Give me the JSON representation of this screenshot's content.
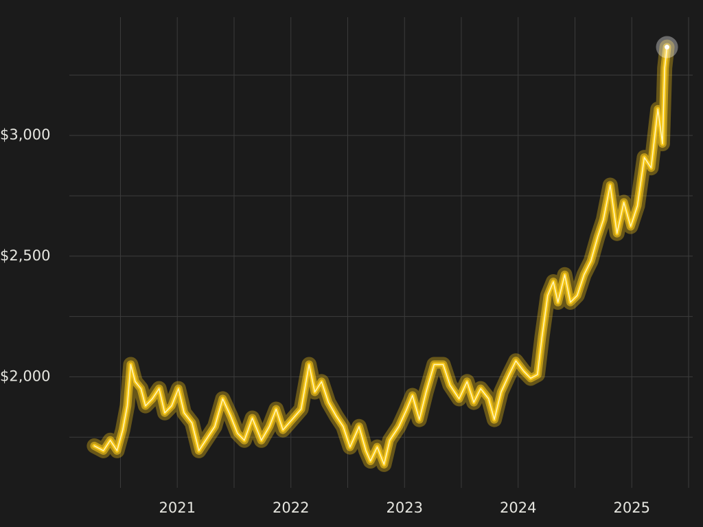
{
  "chart_data": {
    "type": "line",
    "x": [
      2020.27,
      2020.35,
      2020.41,
      2020.47,
      2020.52,
      2020.56,
      2020.59,
      2020.63,
      2020.68,
      2020.72,
      2020.78,
      2020.84,
      2020.89,
      2020.95,
      2021.01,
      2021.06,
      2021.13,
      2021.19,
      2021.25,
      2021.33,
      2021.4,
      2021.47,
      2021.53,
      2021.59,
      2021.66,
      2021.74,
      2021.81,
      2021.87,
      2021.93,
      2022.01,
      2022.09,
      2022.16,
      2022.21,
      2022.27,
      2022.33,
      2022.4,
      2022.46,
      2022.52,
      2022.6,
      2022.66,
      2022.7,
      2022.76,
      2022.82,
      2022.87,
      2022.95,
      2023.02,
      2023.07,
      2023.13,
      2023.19,
      2023.26,
      2023.34,
      2023.4,
      2023.48,
      2023.55,
      2023.61,
      2023.67,
      2023.74,
      2023.79,
      2023.85,
      2023.92,
      2023.98,
      2024.05,
      2024.11,
      2024.17,
      2024.21,
      2024.26,
      2024.31,
      2024.35,
      2024.41,
      2024.46,
      2024.52,
      2024.58,
      2024.64,
      2024.7,
      2024.75,
      2024.81,
      2024.87,
      2024.93,
      2024.99,
      2025.05,
      2025.11,
      2025.17,
      2025.23,
      2025.27,
      2025.29,
      2025.31
    ],
    "series": [
      {
        "color": "#f5c518",
        "values": [
          1714,
          1694,
          1737,
          1694,
          1780,
          1880,
          2051,
          1980,
          1951,
          1880,
          1909,
          1951,
          1851,
          1880,
          1951,
          1851,
          1809,
          1694,
          1737,
          1794,
          1909,
          1837,
          1766,
          1737,
          1829,
          1737,
          1794,
          1866,
          1780,
          1823,
          1866,
          2051,
          1937,
          1980,
          1894,
          1837,
          1794,
          1709,
          1794,
          1694,
          1651,
          1709,
          1637,
          1737,
          1794,
          1866,
          1923,
          1823,
          1937,
          2051,
          2051,
          1966,
          1909,
          1980,
          1894,
          1951,
          1909,
          1823,
          1937,
          2009,
          2066,
          2023,
          1994,
          2009,
          2166,
          2337,
          2394,
          2309,
          2423,
          2309,
          2337,
          2423,
          2480,
          2580,
          2651,
          2794,
          2594,
          2723,
          2623,
          2709,
          2909,
          2866,
          3109,
          2966,
          3280,
          3366
        ]
      }
    ],
    "xlim": [
      2020.05,
      2025.5
    ],
    "xticks": [
      2021,
      2022,
      2023,
      2024,
      2025
    ],
    "x_minor_ticks": [
      2020.5,
      2021.5,
      2022.5,
      2023.5,
      2024.5,
      2025.5
    ],
    "ylim": [
      1540,
      3490
    ],
    "yticks": [
      {
        "value": 2000,
        "label": "$2,000"
      },
      {
        "value": 2500,
        "label": "$2,500"
      },
      {
        "value": 3000,
        "label": "$3,000"
      }
    ],
    "y_minor_ticks": [
      1750,
      2250,
      2750,
      3250
    ],
    "grid": true
  }
}
